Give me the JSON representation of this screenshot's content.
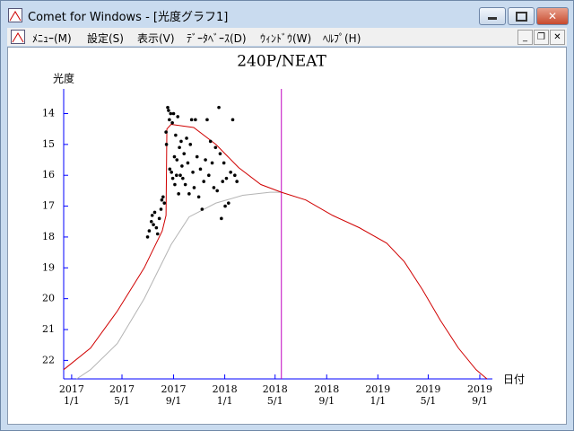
{
  "window": {
    "title": "Comet for Windows - [光度グラフ1]",
    "menu": [
      "ﾒﾆｭｰ(M)",
      "設定(S)",
      "表示(V)",
      "ﾃﾞｰﾀﾍﾞｰｽ(D)",
      "ｳｨﾝﾄﾞｳ(W)",
      "ﾍﾙﾌﾟ(H)"
    ]
  },
  "chart_data": {
    "type": "line",
    "title": "240P/NEAT",
    "y_label": "光度",
    "x_label": "日付",
    "xlim": [
      "2016-12-13",
      "2019-10-01"
    ],
    "xticks": [
      {
        "value": "2017-01-01",
        "label": [
          "2017",
          "1/1"
        ]
      },
      {
        "value": "2017-05-01",
        "label": [
          "2017",
          "5/1"
        ]
      },
      {
        "value": "2017-09-01",
        "label": [
          "2017",
          "9/1"
        ]
      },
      {
        "value": "2018-01-01",
        "label": [
          "2018",
          "1/1"
        ]
      },
      {
        "value": "2018-05-01",
        "label": [
          "2018",
          "5/1"
        ]
      },
      {
        "value": "2018-09-01",
        "label": [
          "2018",
          "9/1"
        ]
      },
      {
        "value": "2019-01-01",
        "label": [
          "2019",
          "1/1"
        ]
      },
      {
        "value": "2019-05-01",
        "label": [
          "2019",
          "5/1"
        ]
      },
      {
        "value": "2019-09-01",
        "label": [
          "2019",
          "9/1"
        ]
      }
    ],
    "ylim": [
      22.6,
      13.2
    ],
    "yticks": [
      14,
      15,
      16,
      17,
      18,
      19,
      20,
      21,
      22
    ],
    "axis_color": "#0000ff",
    "marker_x": "2018-05-16",
    "marker_color": "#c000c0",
    "series": [
      {
        "type": "line",
        "color": "#b4b4b4",
        "x": [
          "2017-01-13",
          "2017-02-15",
          "2017-04-20",
          "2017-06-23",
          "2017-08-26",
          "2017-10-08",
          "2017-12-11",
          "2018-02-13",
          "2018-04-19",
          "2018-05-16"
        ],
        "values": [
          22.6,
          22.3,
          21.45,
          20.0,
          18.25,
          17.35,
          16.9,
          16.65,
          16.55,
          16.55
        ]
      },
      {
        "type": "line",
        "color": "#d00000",
        "x": [
          "2016-12-13",
          "2017-02-15",
          "2017-04-20",
          "2017-06-23",
          "2017-08-05",
          "2017-08-14",
          "2017-08-16",
          "2017-08-26",
          "2017-10-19",
          "2017-12-11",
          "2018-02-03",
          "2018-03-28",
          "2018-05-16",
          "2018-07-13",
          "2018-09-15",
          "2018-11-18",
          "2019-01-22",
          "2019-03-05",
          "2019-04-17",
          "2019-05-30",
          "2019-07-12",
          "2019-08-23",
          "2019-09-18"
        ],
        "values": [
          22.3,
          21.6,
          20.4,
          19.0,
          17.8,
          17.3,
          14.5,
          14.35,
          14.45,
          15.0,
          15.75,
          16.3,
          16.55,
          16.8,
          17.3,
          17.7,
          18.2,
          18.8,
          19.7,
          20.7,
          21.6,
          22.3,
          22.6
        ]
      },
      {
        "type": "scatter",
        "color": "#000000",
        "x": [
          "2017-07-01",
          "2017-07-05",
          "2017-07-10",
          "2017-07-12",
          "2017-07-15",
          "2017-07-18",
          "2017-07-22",
          "2017-07-25",
          "2017-07-29",
          "2017-08-02",
          "2017-08-04",
          "2017-08-07",
          "2017-08-10",
          "2017-08-14",
          "2017-08-15",
          "2017-08-18",
          "2017-08-20",
          "2017-08-22",
          "2017-08-23",
          "2017-08-25",
          "2017-08-27",
          "2017-08-29",
          "2017-08-30",
          "2017-09-01",
          "2017-09-03",
          "2017-09-04",
          "2017-09-06",
          "2017-09-08",
          "2017-09-09",
          "2017-09-11",
          "2017-09-13",
          "2017-09-15",
          "2017-09-17",
          "2017-09-19",
          "2017-09-21",
          "2017-09-23",
          "2017-09-26",
          "2017-09-29",
          "2017-10-02",
          "2017-10-05",
          "2017-10-08",
          "2017-10-11",
          "2017-10-14",
          "2017-10-17",
          "2017-10-20",
          "2017-10-23",
          "2017-10-27",
          "2017-10-31",
          "2017-11-04",
          "2017-11-08",
          "2017-11-12",
          "2017-11-16",
          "2017-11-20",
          "2017-11-24",
          "2017-11-28",
          "2017-12-02",
          "2017-12-06",
          "2017-12-10",
          "2017-12-14",
          "2017-12-18",
          "2017-12-21",
          "2017-12-24",
          "2017-12-27",
          "2017-12-30",
          "2018-01-02",
          "2018-01-05",
          "2018-01-10",
          "2018-01-15",
          "2018-01-20",
          "2018-01-25",
          "2018-01-30"
        ],
        "values": [
          18.0,
          17.8,
          17.5,
          17.3,
          17.6,
          17.2,
          17.7,
          17.9,
          17.4,
          17.1,
          16.8,
          16.7,
          16.9,
          14.6,
          15.0,
          13.8,
          13.9,
          14.2,
          15.8,
          14.0,
          15.9,
          14.3,
          16.1,
          14.0,
          15.4,
          16.3,
          14.7,
          16.0,
          15.5,
          14.1,
          16.6,
          15.1,
          16.0,
          14.9,
          15.7,
          16.1,
          15.3,
          16.3,
          14.8,
          15.6,
          16.6,
          15.0,
          14.2,
          15.9,
          16.4,
          14.2,
          15.4,
          16.7,
          15.8,
          17.1,
          16.2,
          15.5,
          14.2,
          16.0,
          14.9,
          15.6,
          16.4,
          15.1,
          16.5,
          13.8,
          15.3,
          17.4,
          16.2,
          15.6,
          17.0,
          16.1,
          16.9,
          15.9,
          14.2,
          16.0,
          16.2
        ]
      }
    ]
  }
}
